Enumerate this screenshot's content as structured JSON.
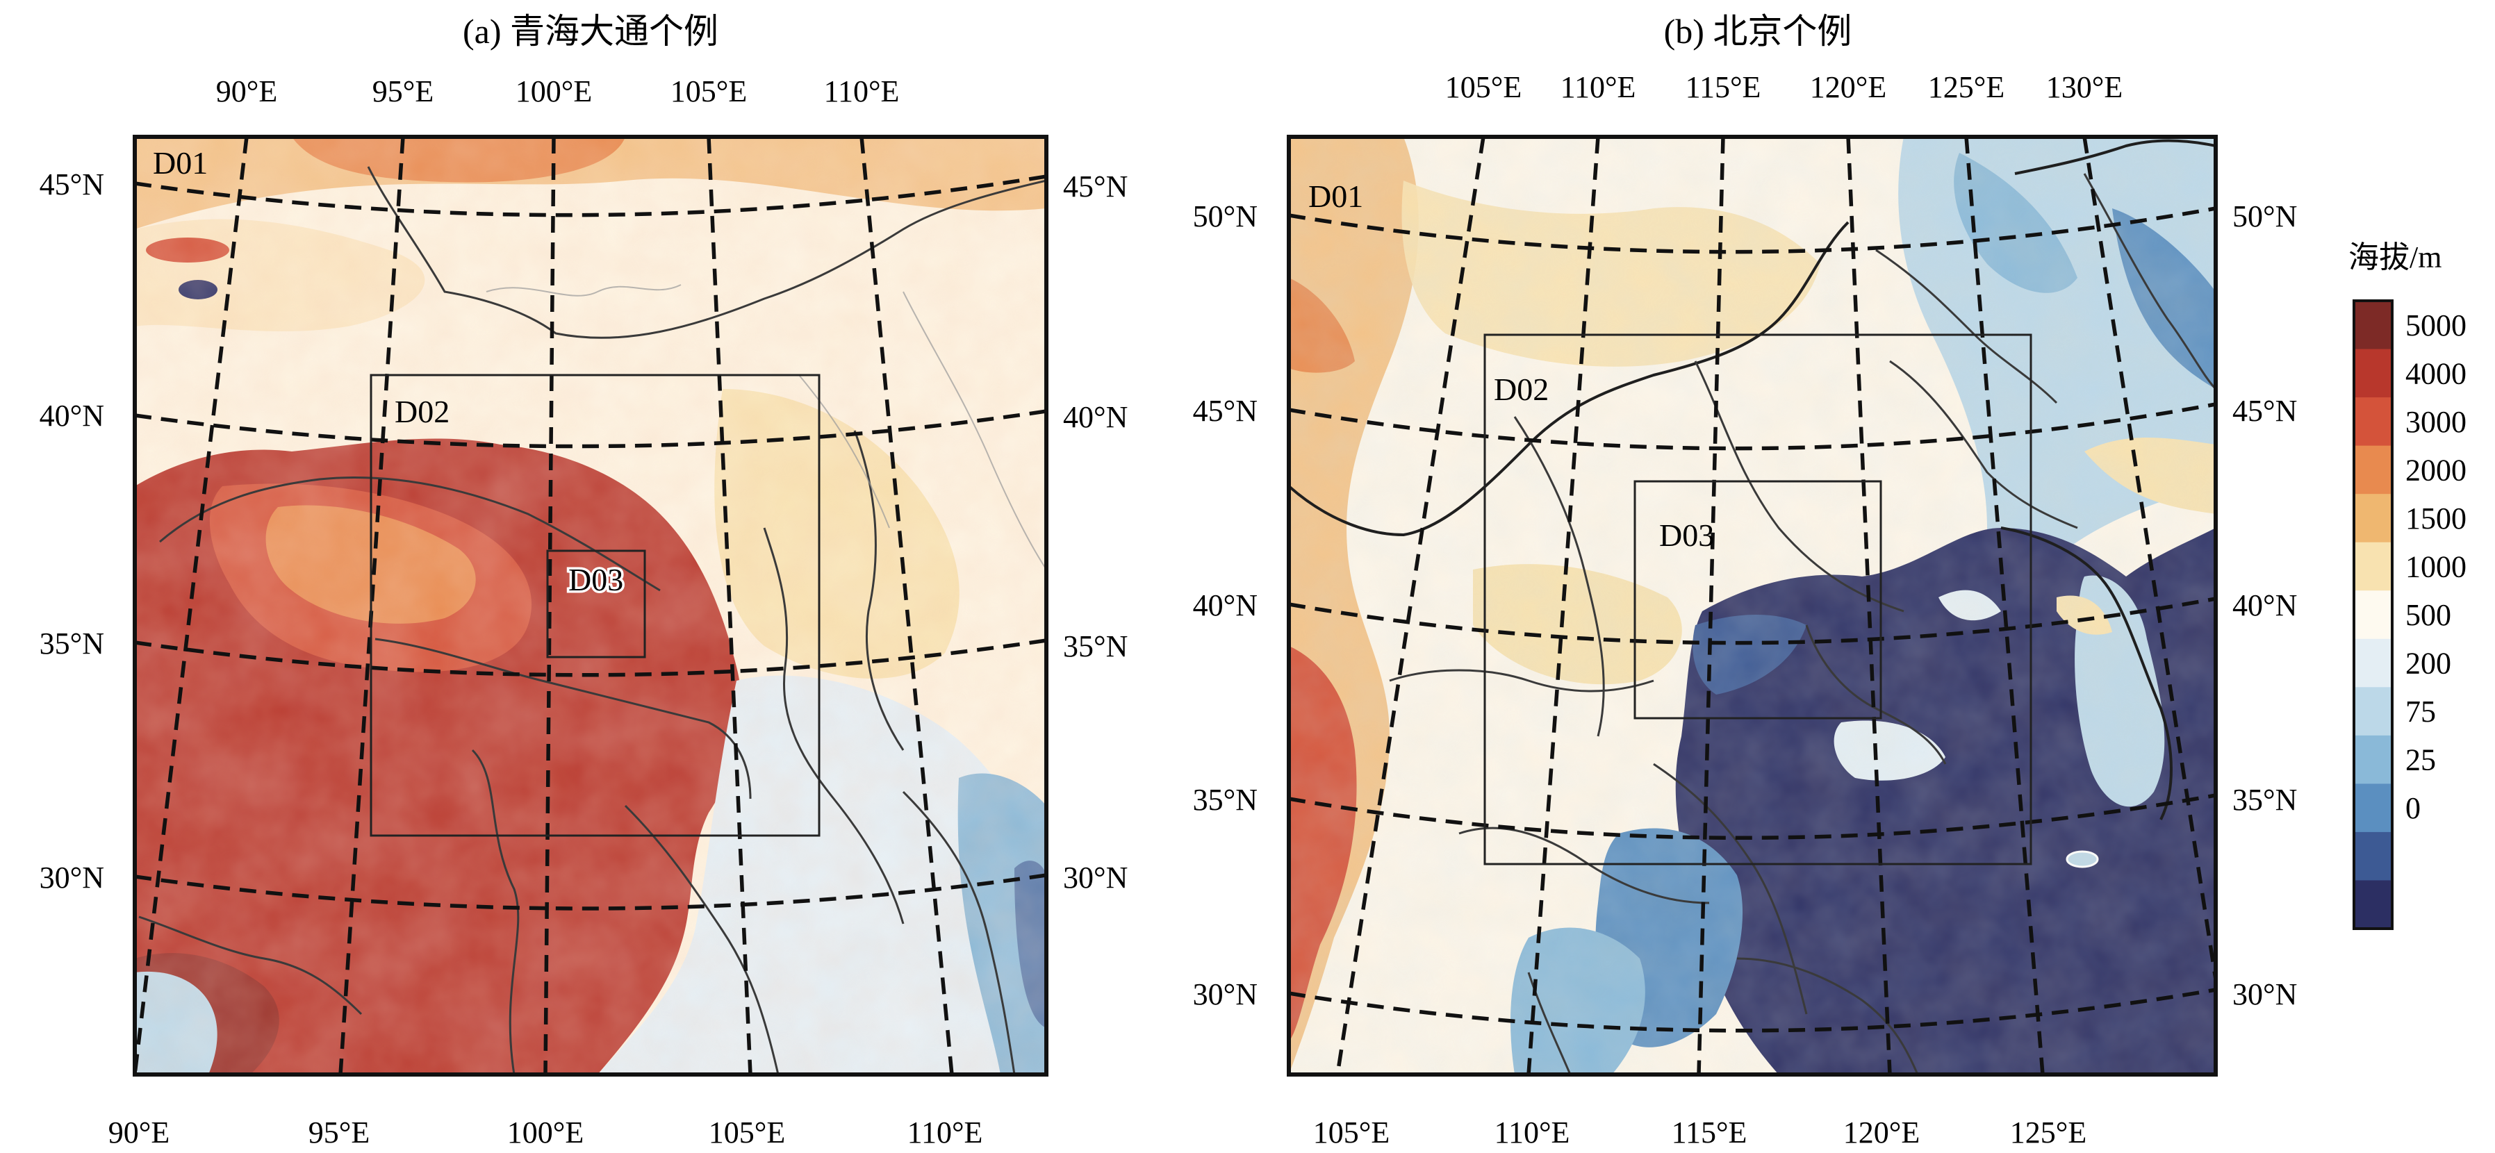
{
  "panel_a": {
    "title": "(a) 青海大通个例",
    "domains": [
      "D01",
      "D02",
      "D03"
    ],
    "lon_top": [
      "90°E",
      "95°E",
      "100°E",
      "105°E",
      "110°E"
    ],
    "lon_bottom": [
      "90°E",
      "95°E",
      "100°E",
      "105°E",
      "110°E"
    ],
    "lat_left": [
      "45°N",
      "40°N",
      "35°N",
      "30°N"
    ],
    "lat_right": [
      "45°N",
      "40°N",
      "35°N",
      "30°N"
    ]
  },
  "panel_b": {
    "title": "(b) 北京个例",
    "domains": [
      "D01",
      "D02",
      "D03"
    ],
    "lon_top": [
      "105°E",
      "110°E",
      "115°E",
      "120°E",
      "125°E",
      "130°E"
    ],
    "lon_bottom": [
      "105°E",
      "110°E",
      "115°E",
      "120°E",
      "125°E"
    ],
    "lat_left": [
      "50°N",
      "45°N",
      "40°N",
      "35°N",
      "30°N"
    ],
    "lat_right": [
      "50°N",
      "45°N",
      "40°N",
      "35°N",
      "30°N"
    ]
  },
  "colorbar": {
    "title": "海拔/m",
    "levels": [
      "5000",
      "4000",
      "3000",
      "2000",
      "1500",
      "1000",
      "500",
      "200",
      "75",
      "25",
      "0"
    ],
    "colors": [
      "#7d2a26",
      "#b8372c",
      "#d4533a",
      "#e88a4f",
      "#efb770",
      "#f8e2b0",
      "#fefaf0",
      "#e4eef4",
      "#bcd8e8",
      "#8ab9d8",
      "#5b8fc0",
      "#3d5a94",
      "#2c2f63"
    ]
  },
  "chart_data": {
    "type": "map",
    "variable": "terrain elevation",
    "unit": "m",
    "panels": [
      {
        "title": "(a) 青海大通个例",
        "nested_domains": [
          "D01",
          "D02",
          "D03"
        ],
        "longitude_ticks": [
          90,
          95,
          100,
          105,
          110
        ],
        "latitude_ticks": [
          30,
          35,
          40,
          45
        ]
      },
      {
        "title": "(b) 北京个例",
        "nested_domains": [
          "D01",
          "D02",
          "D03"
        ],
        "longitude_ticks": [
          105,
          110,
          115,
          120,
          125,
          130
        ],
        "latitude_ticks": [
          30,
          35,
          40,
          45,
          50
        ]
      }
    ],
    "colorbar_levels": [
      0,
      25,
      75,
      200,
      500,
      1000,
      1500,
      2000,
      3000,
      4000,
      5000
    ]
  }
}
